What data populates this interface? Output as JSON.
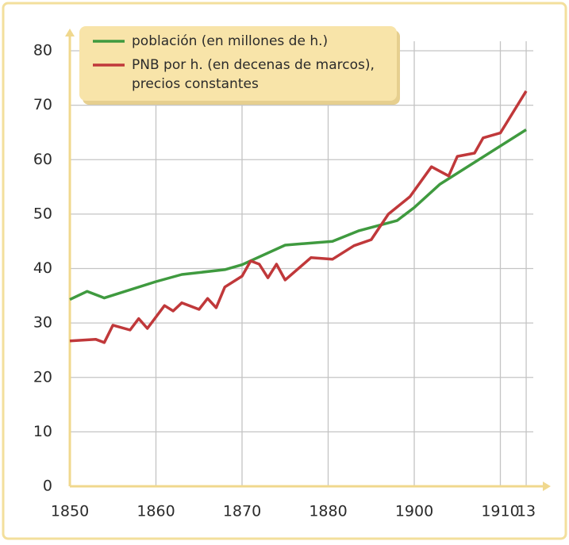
{
  "chart_data": {
    "type": "line",
    "series": [
      {
        "name": "población (en millones de h.)",
        "color": "#3f9a3f",
        "x": [
          1850,
          1852,
          1854,
          1860,
          1863,
          1868,
          1870,
          1875,
          1881,
          1887,
          1896,
          1900,
          1903,
          1913
        ],
        "values": [
          34.3,
          35.8,
          34.6,
          37.6,
          38.9,
          39.8,
          40.7,
          44.3,
          45,
          46.9,
          48.8,
          51.2,
          55.5,
          65.5
        ]
      },
      {
        "name": "PNB por h. (en decenas de marcos),\nprecios constantes",
        "color": "#c0383a",
        "x": [
          1850,
          1853,
          1854,
          1855,
          1857,
          1858,
          1859,
          1861,
          1862,
          1863,
          1865,
          1866,
          1867,
          1868,
          1870,
          1871,
          1872,
          1873,
          1874,
          1875,
          1878,
          1881,
          1886,
          1890,
          1894,
          1899,
          1902,
          1904,
          1905,
          1907,
          1908,
          1910,
          1913
        ],
        "values": [
          26.7,
          27,
          26.4,
          29.6,
          28.7,
          30.8,
          29,
          33.2,
          32.2,
          33.7,
          32.5,
          34.5,
          32.8,
          36.6,
          38.6,
          41.4,
          40.8,
          38.3,
          40.8,
          37.9,
          42,
          41.7,
          44.2,
          45.3,
          50,
          53.2,
          58.7,
          57,
          60.6,
          61.2,
          64,
          64.9,
          72.6
        ]
      }
    ],
    "xticks": [
      1850,
      1860,
      1870,
      1880,
      1900,
      1910,
      {
        "value": 1913,
        "label": "13"
      }
    ],
    "ylim": [
      0,
      80
    ],
    "yticks": [
      0,
      10,
      20,
      30,
      40,
      50,
      60,
      70,
      80
    ],
    "grid": true
  }
}
